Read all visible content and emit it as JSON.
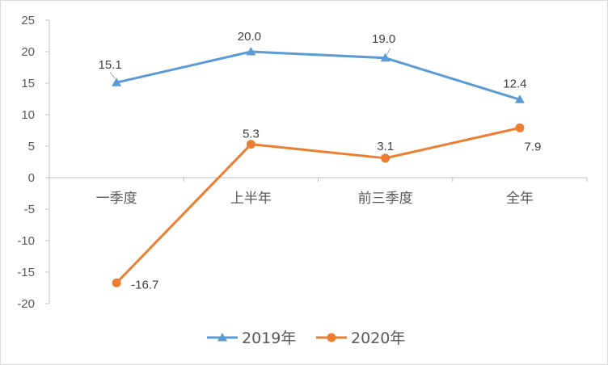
{
  "chart_data": {
    "type": "line",
    "categories": [
      "一季度",
      "上半年",
      "前三季度",
      "全年"
    ],
    "ylim": [
      -20,
      25
    ],
    "yticks": [
      25,
      20,
      15,
      10,
      5,
      0,
      -5,
      -10,
      -15,
      -20
    ],
    "grid": false,
    "legend_position": "bottom",
    "series": [
      {
        "name": "2019年",
        "values": [
          15.1,
          20.0,
          19.0,
          12.4
        ],
        "labels": [
          "15.1",
          "20.0",
          "19.0",
          "12.4"
        ],
        "color": "#5b9bd5",
        "marker": "triangle"
      },
      {
        "name": "2020年",
        "values": [
          -16.7,
          5.3,
          3.1,
          7.9
        ],
        "labels": [
          "-16.7",
          "5.3",
          "3.1",
          "7.9"
        ],
        "color": "#ed7d31",
        "marker": "circle"
      }
    ]
  },
  "colors": {
    "axis": "#bfbfbf",
    "text": "#595959"
  }
}
